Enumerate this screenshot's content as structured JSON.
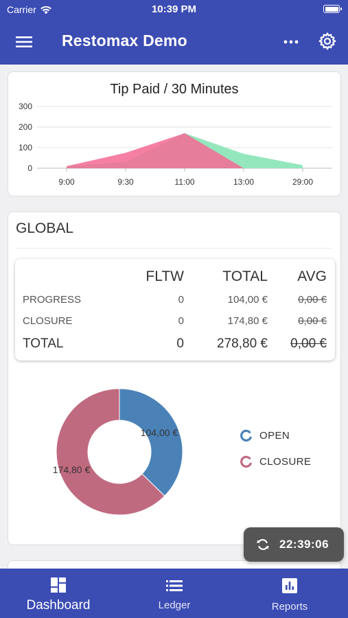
{
  "status_bar": {
    "carrier": "Carrier",
    "time": "10:39 PM"
  },
  "app_bar": {
    "title": "Restomax Demo",
    "menu_icon": "hamburger-menu-icon",
    "more_icon": "more-horizontal-icon",
    "settings_icon": "gear-icon"
  },
  "chart_data": {
    "type": "area",
    "title": "Tip Paid / 30 Minutes",
    "categories": [
      "9:00",
      "9:30",
      "11:00",
      "13:00",
      "29:00"
    ],
    "y_ticks": [
      0,
      100,
      200,
      300
    ],
    "ylim": [
      0,
      300
    ],
    "series": [
      {
        "color": "#8ee6b9",
        "values": [
          10,
          30,
          170,
          70,
          15
        ]
      },
      {
        "color": "#f46a94",
        "values": [
          10,
          75,
          170,
          0,
          0
        ]
      }
    ],
    "grid": true,
    "legend": "none"
  },
  "global": {
    "title": "GLOBAL",
    "table": {
      "headers": {
        "label": "",
        "fltw": "FLTW",
        "total": "TOTAL",
        "avg": "AVG"
      },
      "rows": [
        {
          "label": "PROGRESS",
          "fltw": "0",
          "total": "104,00 €",
          "avg": "0,00 €"
        },
        {
          "label": "CLOSURE",
          "fltw": "0",
          "total": "174,80 €",
          "avg": "0,00 €"
        }
      ],
      "total_row": {
        "label": "TOTAL",
        "fltw": "0",
        "total": "278,80 €",
        "avg": "0,00 €"
      }
    },
    "donut": {
      "type": "pie",
      "slices": [
        {
          "name": "OPEN",
          "value": 104.0,
          "label": "104,00 €",
          "color": "#4a82b8"
        },
        {
          "name": "CLOSURE",
          "value": 174.8,
          "label": "174,80 €",
          "color": "#c06a80"
        }
      ]
    }
  },
  "refresh": {
    "time": "22:39:06",
    "icon": "refresh-icon"
  },
  "bottom_nav": [
    {
      "label": "Dashboard",
      "icon": "dashboard-icon"
    },
    {
      "label": "Ledger",
      "icon": "list-icon"
    },
    {
      "label": "Reports",
      "icon": "bar-chart-icon"
    }
  ]
}
